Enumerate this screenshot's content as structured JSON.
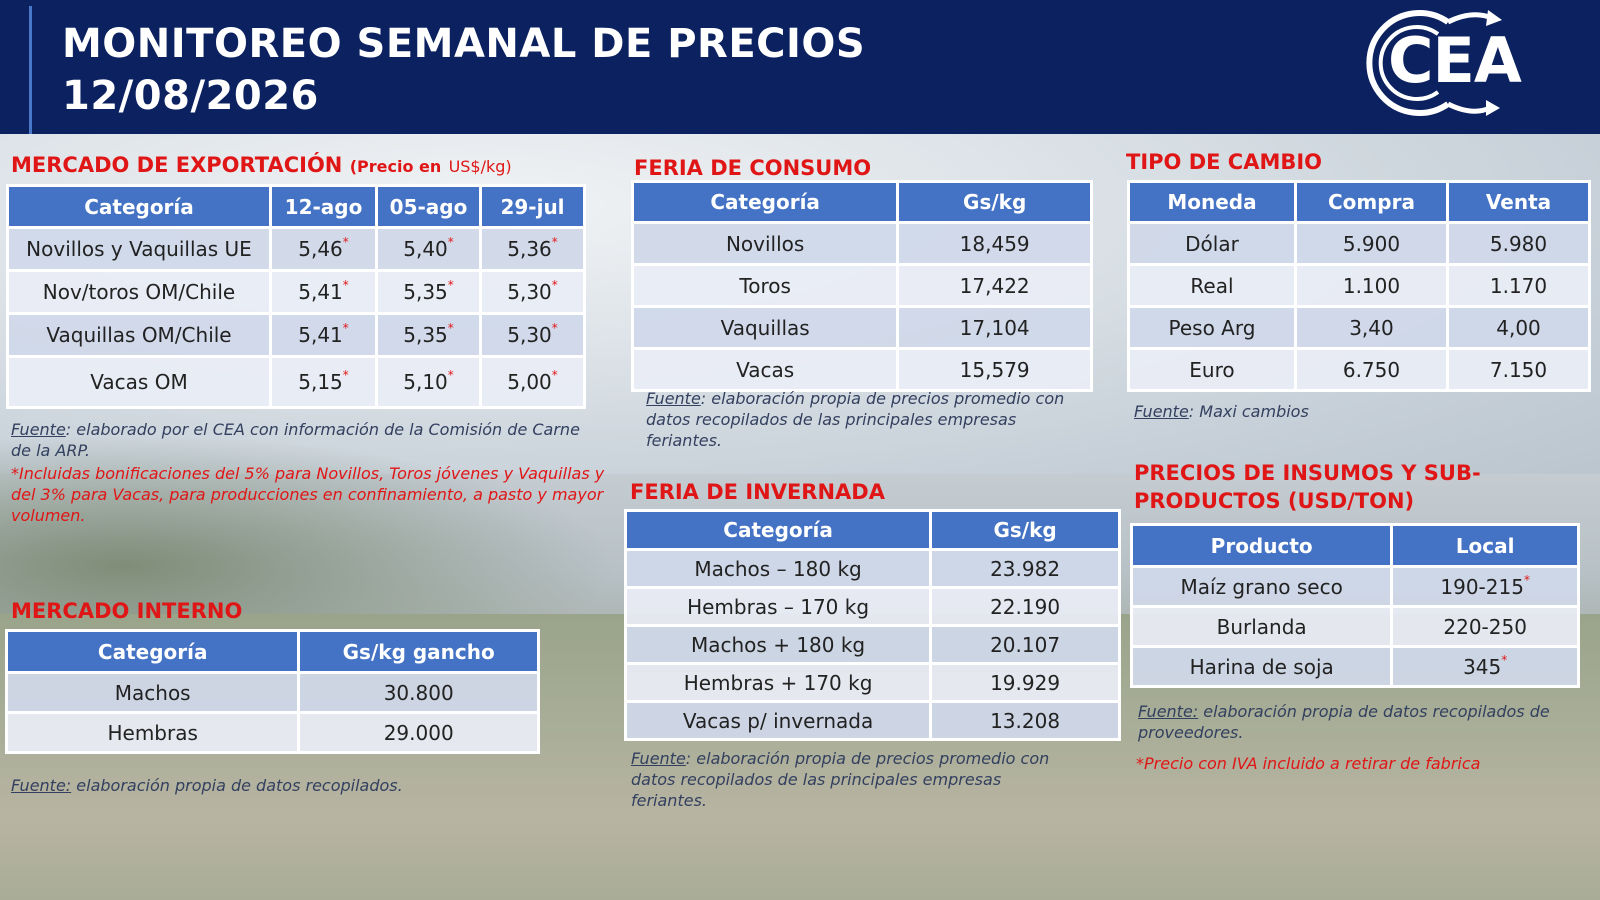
{
  "header": {
    "title_line1": "MONITOREO SEMANAL DE PRECIOS",
    "title_line2": "12/08/2026",
    "logo_text": "CEA"
  },
  "colors": {
    "header_bg": "#0b2160",
    "section_title": "#e01616",
    "table_header": "#4472c4",
    "row_odd": "#d0d8ea",
    "row_even": "#e9edf5"
  },
  "export_market": {
    "title": "MERCADO DE EXPORTACIÓN",
    "subtitle_bold": "(Precio en",
    "subtitle_unit": "US$/kg)",
    "headers": [
      "Categoría",
      "12-ago",
      "05-ago",
      "29-jul"
    ],
    "rows": [
      [
        "Novillos y Vaquillas UE",
        "5,46",
        "5,40",
        "5,36"
      ],
      [
        "Nov/toros OM/Chile",
        "5,41",
        "5,35",
        "5,30"
      ],
      [
        "Vaquillas OM/Chile",
        "5,41",
        "5,35",
        "5,30"
      ],
      [
        "Vacas OM",
        "5,15",
        "5,10",
        "5,00"
      ]
    ],
    "star": "*",
    "source_label": "Fuente",
    "source_text": ": elaborado por el CEA con información de la Comisión de Carne de la ARP.",
    "footnote": "*Incluidas bonificaciones del 5% para Novillos, Toros jóvenes y Vaquillas y del 3% para Vacas, para producciones en confinamiento, a pasto y mayor volumen."
  },
  "internal_market": {
    "title": "MERCADO INTERNO",
    "headers": [
      "Categoría",
      "Gs/kg gancho"
    ],
    "rows": [
      [
        "Machos",
        "30.800"
      ],
      [
        "Hembras",
        "29.000"
      ]
    ],
    "source_label": "Fuente:",
    "source_text": " elaboración propia de datos recopilados."
  },
  "consumption_fair": {
    "title": "FERIA DE CONSUMO",
    "headers": [
      "Categoría",
      "Gs/kg"
    ],
    "rows": [
      [
        "Novillos",
        "18,459"
      ],
      [
        "Toros",
        "17,422"
      ],
      [
        "Vaquillas",
        "17,104"
      ],
      [
        "Vacas",
        "15,579"
      ]
    ],
    "source_label": "Fuente",
    "source_text": ": elaboración propia de precios promedio con datos recopilados de las principales empresas feriantes."
  },
  "wintering_fair": {
    "title": "FERIA DE INVERNADA",
    "headers": [
      "Categoría",
      "Gs/kg"
    ],
    "rows": [
      [
        "Machos – 180 kg",
        "23.982"
      ],
      [
        "Hembras – 170 kg",
        "22.190"
      ],
      [
        "Machos + 180 kg",
        "20.107"
      ],
      [
        "Hembras + 170 kg",
        "19.929"
      ],
      [
        "Vacas p/ invernada",
        "13.208"
      ]
    ],
    "source_label": "Fuente",
    "source_text": ": elaboración propia de precios promedio con datos recopilados de las principales empresas feriantes."
  },
  "exchange_rate": {
    "title": "TIPO DE CAMBIO",
    "headers": [
      "Moneda",
      "Compra",
      "Venta"
    ],
    "rows": [
      [
        "Dólar",
        "5.900",
        "5.980"
      ],
      [
        "Real",
        "1.100",
        "1.170"
      ],
      [
        "Peso Arg",
        "3,40",
        "4,00"
      ],
      [
        "Euro",
        "6.750",
        "7.150"
      ]
    ],
    "source_label": "Fuente",
    "source_text": ": Maxi cambios"
  },
  "inputs": {
    "title_line1": "PRECIOS DE INSUMOS Y SUB-",
    "title_line2": "PRODUCTOS (USD/TON)",
    "headers": [
      "Producto",
      "Local"
    ],
    "rows": [
      [
        "Maíz grano seco",
        "190-215"
      ],
      [
        "Burlanda",
        "220-250"
      ],
      [
        "Harina de soja",
        "345"
      ]
    ],
    "star": "*",
    "source_label": "Fuente:",
    "source_text": " elaboración propia de datos recopilados de proveedores.",
    "footnote": "*Precio con IVA incluido a retirar de fabrica"
  }
}
